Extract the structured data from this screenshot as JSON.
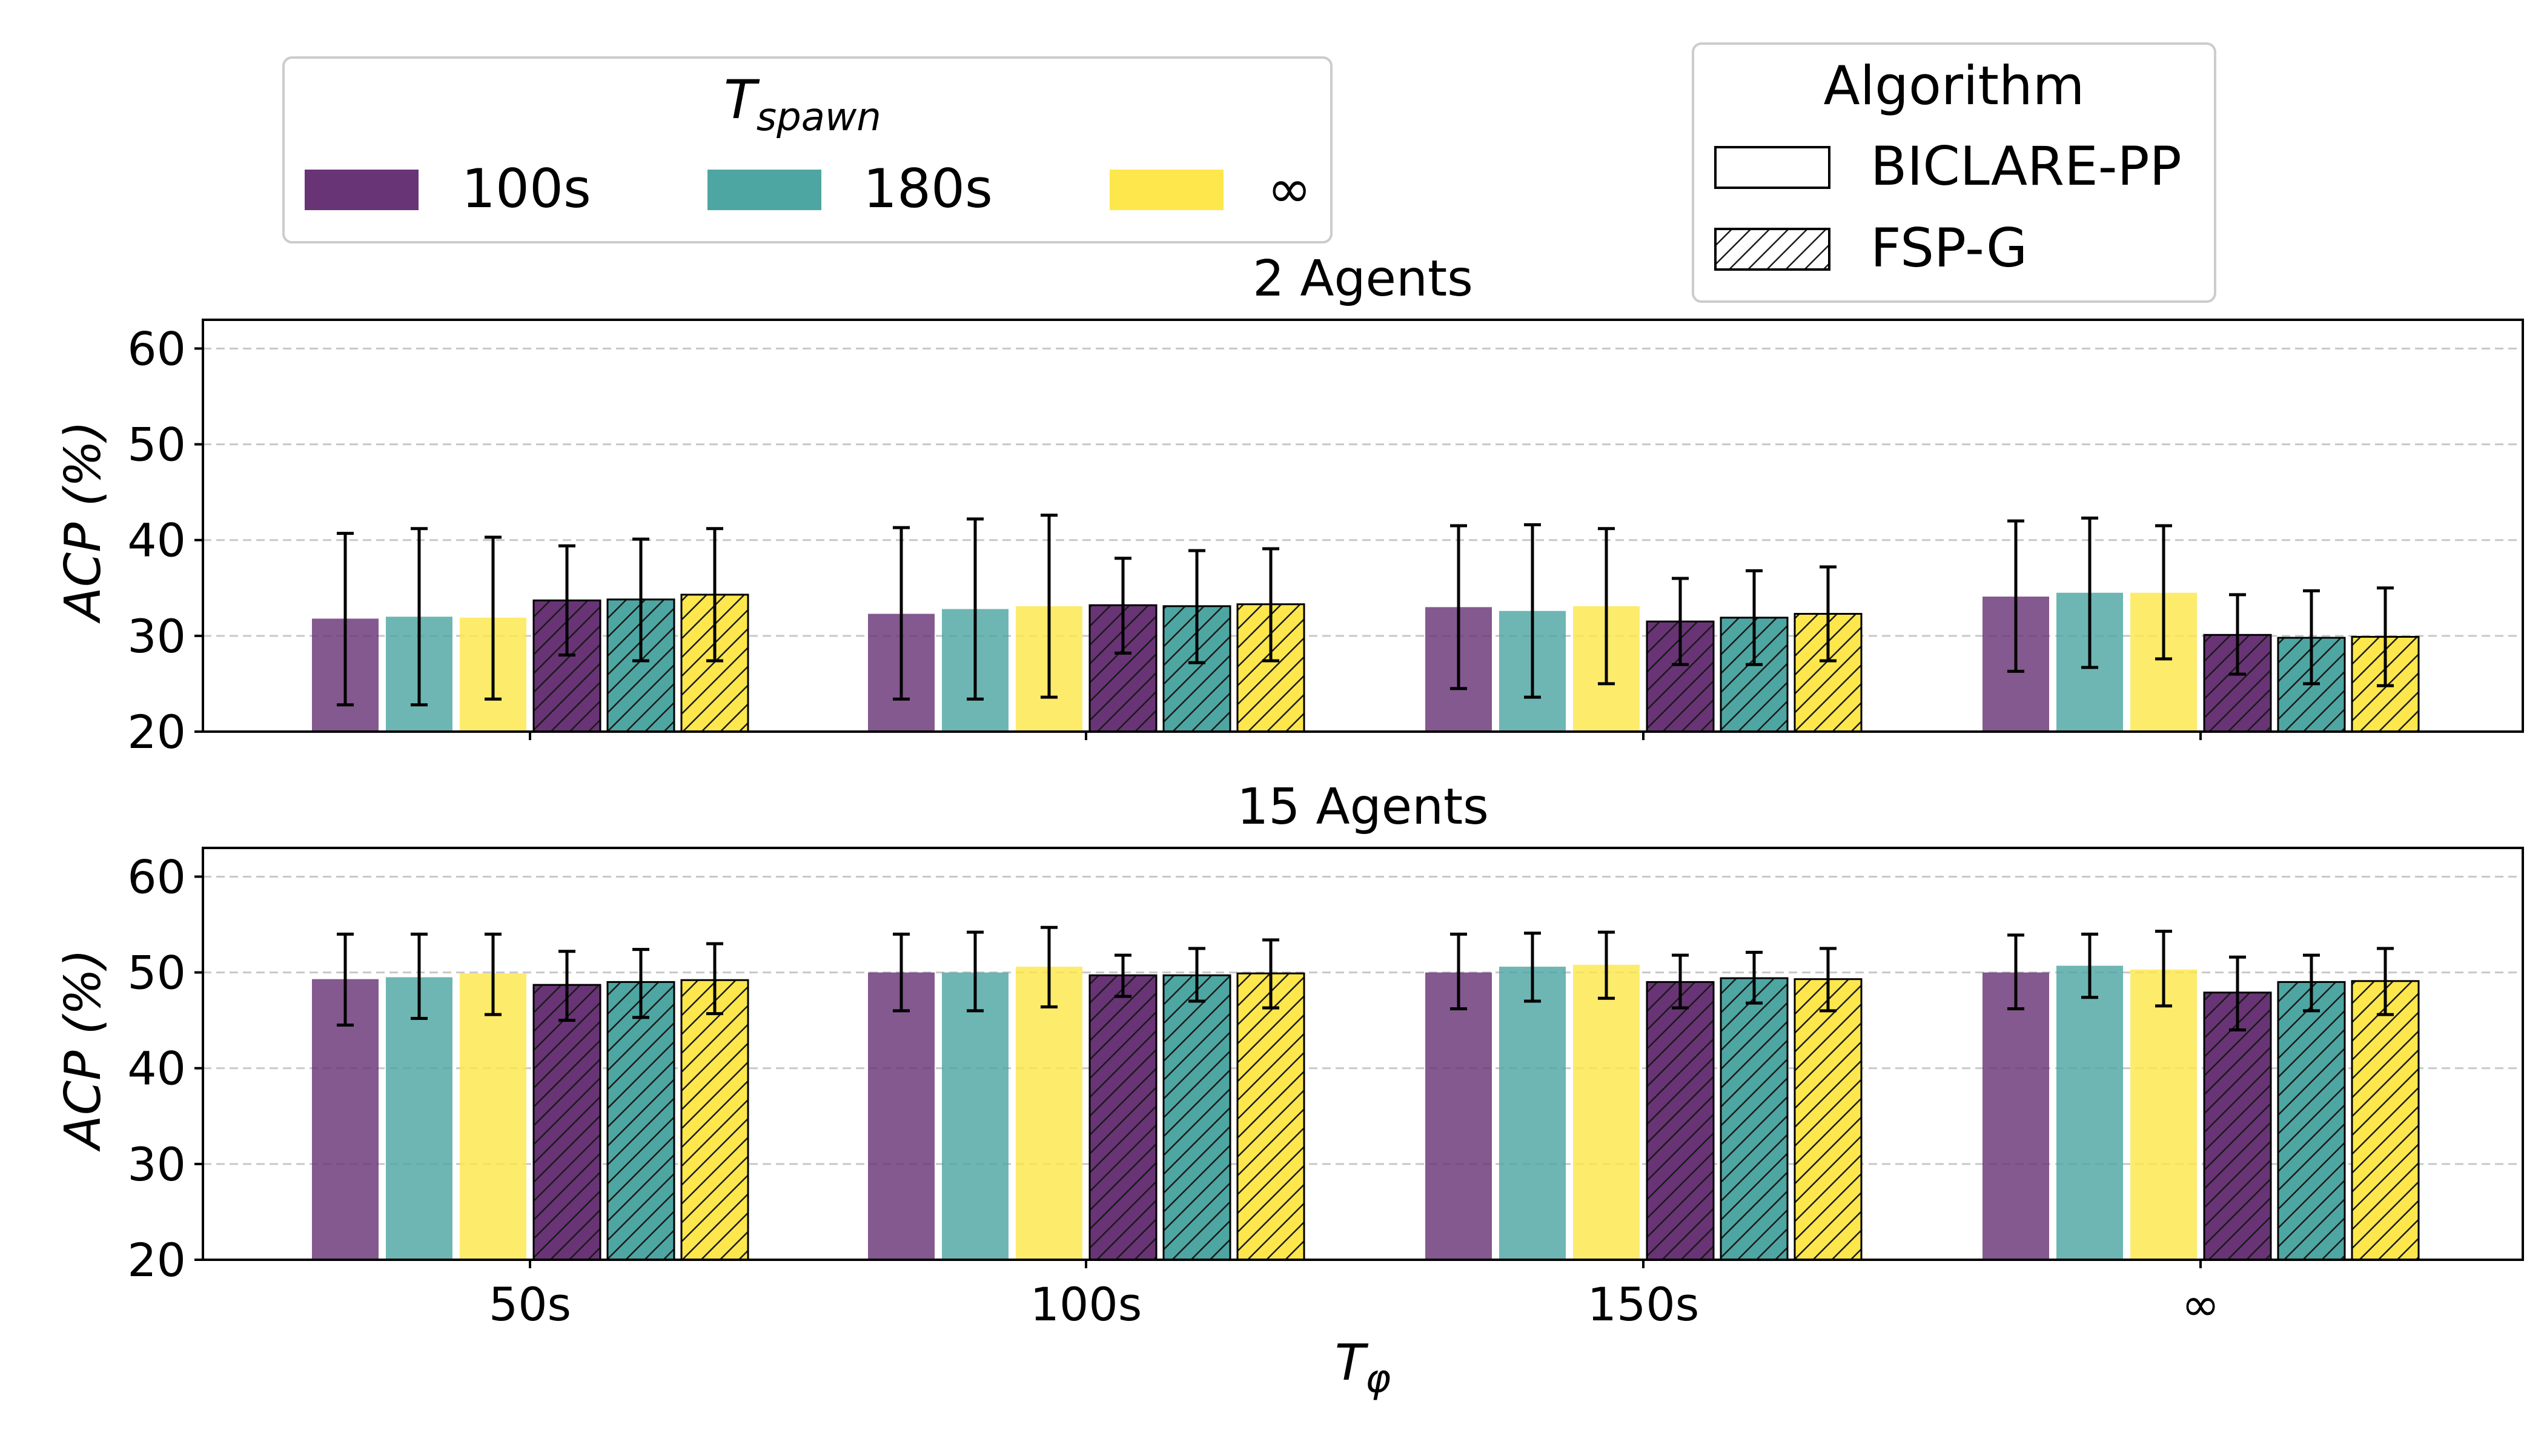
{
  "legend_tspawn": {
    "title_main": "T",
    "title_sub": "spawn",
    "entries": [
      {
        "label": "100s",
        "color": "#693476"
      },
      {
        "label": "180s",
        "color": "#4ea6a2"
      },
      {
        "label": "∞",
        "color": "#fde74c"
      }
    ]
  },
  "legend_algorithm": {
    "title": "Algorithm",
    "entries": [
      {
        "label": "BICLARE-PP",
        "hatched": false
      },
      {
        "label": "FSP-G",
        "hatched": true
      }
    ]
  },
  "xaxis": {
    "label_main": "T",
    "label_sub": "φ"
  },
  "chart_data": [
    {
      "type": "bar",
      "title": "2 Agents",
      "ylabel": "ACP (%)",
      "ylim": [
        20,
        63
      ],
      "yticks": [
        20,
        30,
        40,
        50,
        60
      ],
      "grid": true,
      "categories": [
        "50s",
        "100s",
        "150s",
        "∞"
      ],
      "series": [
        {
          "algorithm": "BICLARE-PP",
          "tspawn": "100s",
          "values": [
            31.8,
            32.3,
            33.0,
            34.1
          ],
          "err_low": [
            22.8,
            23.4,
            24.5,
            26.3
          ],
          "err_high": [
            40.7,
            41.3,
            41.5,
            42.0
          ]
        },
        {
          "algorithm": "BICLARE-PP",
          "tspawn": "180s",
          "values": [
            32.0,
            32.8,
            32.6,
            34.5
          ],
          "err_low": [
            22.8,
            23.4,
            23.6,
            26.7
          ],
          "err_high": [
            41.2,
            42.2,
            41.6,
            42.3
          ]
        },
        {
          "algorithm": "BICLARE-PP",
          "tspawn": "∞",
          "values": [
            31.9,
            33.1,
            33.1,
            34.5
          ],
          "err_low": [
            23.4,
            23.6,
            25.0,
            27.6
          ],
          "err_high": [
            40.3,
            42.6,
            41.2,
            41.5
          ]
        },
        {
          "algorithm": "FSP-G",
          "tspawn": "100s",
          "values": [
            33.7,
            33.2,
            31.5,
            30.1
          ],
          "err_low": [
            28.0,
            28.2,
            27.0,
            26.0
          ],
          "err_high": [
            39.4,
            38.1,
            36.0,
            34.3
          ]
        },
        {
          "algorithm": "FSP-G",
          "tspawn": "180s",
          "values": [
            33.8,
            33.1,
            31.9,
            29.8
          ],
          "err_low": [
            27.4,
            27.2,
            27.0,
            25.0
          ],
          "err_high": [
            40.1,
            38.9,
            36.8,
            34.7
          ]
        },
        {
          "algorithm": "FSP-G",
          "tspawn": "∞",
          "values": [
            34.3,
            33.3,
            32.3,
            29.9
          ],
          "err_low": [
            27.4,
            27.4,
            27.4,
            24.8
          ],
          "err_high": [
            41.2,
            39.1,
            37.2,
            35.0
          ]
        }
      ]
    },
    {
      "type": "bar",
      "title": "15 Agents",
      "ylabel": "ACP (%)",
      "ylim": [
        20,
        63
      ],
      "yticks": [
        20,
        30,
        40,
        50,
        60
      ],
      "grid": true,
      "categories": [
        "50s",
        "100s",
        "150s",
        "∞"
      ],
      "series": [
        {
          "algorithm": "BICLARE-PP",
          "tspawn": "100s",
          "values": [
            49.3,
            50.0,
            50.0,
            50.0
          ],
          "err_low": [
            44.5,
            46.0,
            46.2,
            46.2
          ],
          "err_high": [
            54.0,
            54.0,
            54.0,
            53.9
          ]
        },
        {
          "algorithm": "BICLARE-PP",
          "tspawn": "180s",
          "values": [
            49.5,
            50.0,
            50.6,
            50.7
          ],
          "err_low": [
            45.2,
            46.0,
            47.0,
            47.4
          ],
          "err_high": [
            54.0,
            54.2,
            54.1,
            54.0
          ]
        },
        {
          "algorithm": "BICLARE-PP",
          "tspawn": "∞",
          "values": [
            49.9,
            50.6,
            50.8,
            50.3
          ],
          "err_low": [
            45.6,
            46.4,
            47.3,
            46.5
          ],
          "err_high": [
            54.0,
            54.7,
            54.2,
            54.3
          ]
        },
        {
          "algorithm": "FSP-G",
          "tspawn": "100s",
          "values": [
            48.7,
            49.7,
            49.0,
            47.9
          ],
          "err_low": [
            45.0,
            47.5,
            46.3,
            44.0
          ],
          "err_high": [
            52.2,
            51.8,
            51.8,
            51.6
          ]
        },
        {
          "algorithm": "FSP-G",
          "tspawn": "180s",
          "values": [
            49.0,
            49.7,
            49.4,
            49.0
          ],
          "err_low": [
            45.3,
            47.0,
            46.8,
            46.0
          ],
          "err_high": [
            52.4,
            52.5,
            52.1,
            51.8
          ]
        },
        {
          "algorithm": "FSP-G",
          "tspawn": "∞",
          "values": [
            49.2,
            49.9,
            49.3,
            49.1
          ],
          "err_low": [
            45.7,
            46.3,
            46.0,
            45.6
          ],
          "err_high": [
            53.0,
            53.4,
            52.5,
            52.5
          ]
        }
      ]
    }
  ]
}
